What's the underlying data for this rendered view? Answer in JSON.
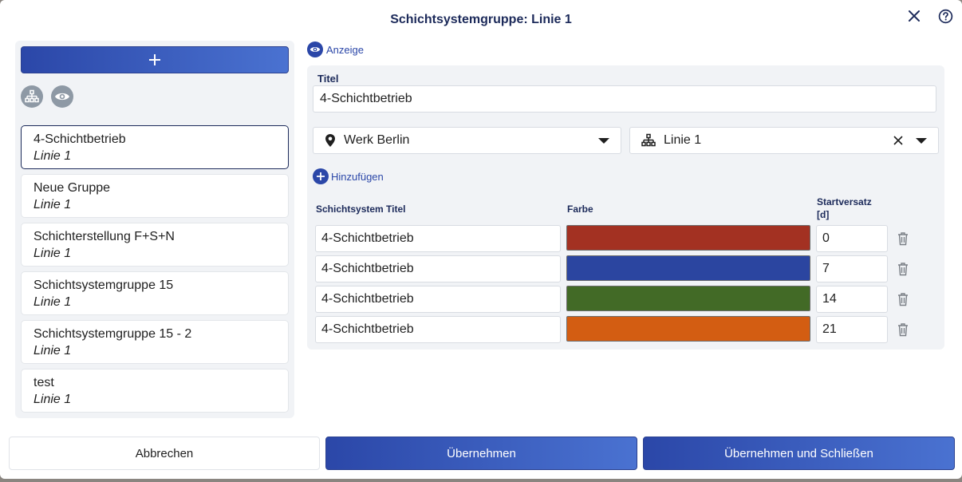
{
  "dialog": {
    "title": "Schichtsystemgruppe: Linie 1"
  },
  "groups": [
    {
      "name": "4-Schichtbetrieb",
      "sub": "Linie 1",
      "selected": true
    },
    {
      "name": "Neue Gruppe",
      "sub": "Linie 1"
    },
    {
      "name": "Schichterstellung F+S+N",
      "sub": "Linie 1"
    },
    {
      "name": "Schichtsystemgruppe 15",
      "sub": "Linie 1"
    },
    {
      "name": "Schichtsystemgruppe 15 - 2",
      "sub": "Linie 1"
    },
    {
      "name": "test",
      "sub": "Linie 1"
    }
  ],
  "detail": {
    "view_label": "Anzeige",
    "title_label": "Titel",
    "title_value": "4-Schichtbetrieb",
    "plant_value": "Werk Berlin",
    "line_value": "Linie 1",
    "add_label": "Hinzufügen",
    "col_title": "Schichtsystem Titel",
    "col_color": "Farbe",
    "col_offset_1": "Startversatz",
    "col_offset_2": "[d]",
    "rows": [
      {
        "title": "4-Schichtbetrieb",
        "color": "#a33122",
        "offset": "0"
      },
      {
        "title": "4-Schichtbetrieb",
        "color": "#2b45a0",
        "offset": "7"
      },
      {
        "title": "4-Schichtbetrieb",
        "color": "#426a26",
        "offset": "14"
      },
      {
        "title": "4-Schichtbetrieb",
        "color": "#d35d12",
        "offset": "21"
      }
    ]
  },
  "footer": {
    "cancel": "Abbrechen",
    "apply": "Übernehmen",
    "apply_close": "Übernehmen und Schließen"
  },
  "icons": {
    "close": "close-icon",
    "help": "help-icon",
    "add": "plus-icon",
    "hierarchy": "hierarchy-icon",
    "view": "eye-icon",
    "location": "location-pin-icon",
    "delete": "trash-icon"
  }
}
